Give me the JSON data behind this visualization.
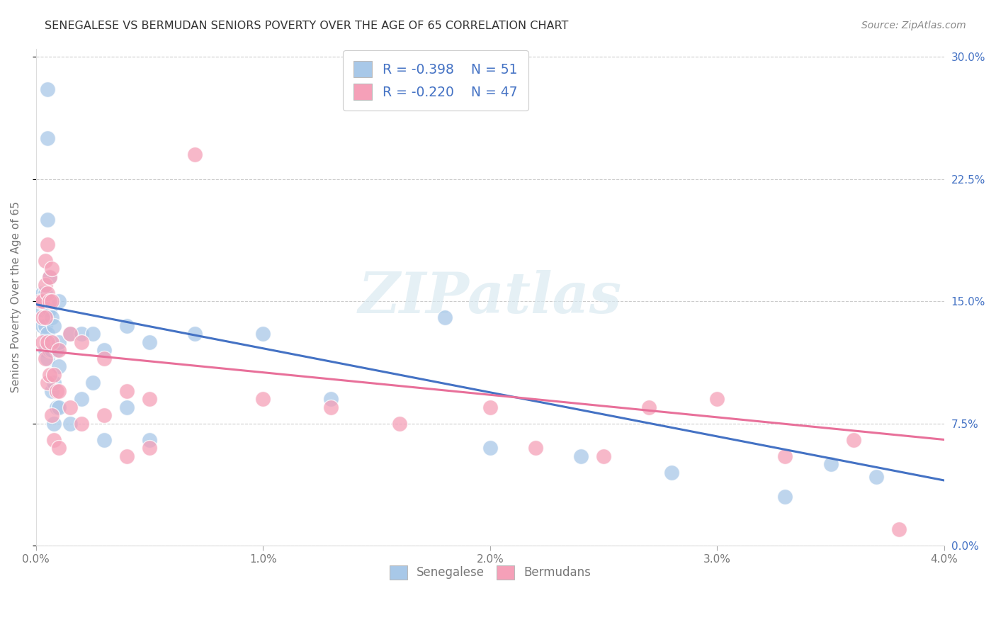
{
  "title": "SENEGALESE VS BERMUDAN SENIORS POVERTY OVER THE AGE OF 65 CORRELATION CHART",
  "source": "Source: ZipAtlas.com",
  "ylabel": "Seniors Poverty Over the Age of 65",
  "xlim": [
    0.0,
    0.04
  ],
  "ylim": [
    0.0,
    0.305
  ],
  "xticks": [
    0.0,
    0.01,
    0.02,
    0.03,
    0.04
  ],
  "xtick_labels": [
    "0.0%",
    "1.0%",
    "2.0%",
    "3.0%",
    "4.0%"
  ],
  "yticks": [
    0.0,
    0.075,
    0.15,
    0.225,
    0.3
  ],
  "ytick_labels_right": [
    "0.0%",
    "7.5%",
    "15.0%",
    "22.5%",
    "30.0%"
  ],
  "watermark": "ZIPatlas",
  "legend_r1": "-0.398",
  "legend_n1": "51",
  "legend_r2": "-0.220",
  "legend_n2": "47",
  "senegalese_label": "Senegalese",
  "bermudans_label": "Bermudans",
  "blue_color": "#a8c8e8",
  "pink_color": "#f5a0b8",
  "blue_line_color": "#4472c4",
  "pink_line_color": "#e8709a",
  "grid_color": "#cccccc",
  "title_color": "#333333",
  "axis_tick_color": "#777777",
  "right_tick_color": "#4472c4",
  "legend_num_color": "#4472c4",
  "blue_scatter_x": [
    0.0002,
    0.0003,
    0.0003,
    0.0003,
    0.0004,
    0.0004,
    0.0004,
    0.0005,
    0.0005,
    0.0005,
    0.0005,
    0.0005,
    0.0005,
    0.0005,
    0.0006,
    0.0006,
    0.0006,
    0.0007,
    0.0007,
    0.0007,
    0.0008,
    0.0008,
    0.0008,
    0.0009,
    0.0009,
    0.001,
    0.001,
    0.001,
    0.001,
    0.0015,
    0.0015,
    0.002,
    0.002,
    0.0025,
    0.0025,
    0.003,
    0.003,
    0.004,
    0.004,
    0.005,
    0.005,
    0.007,
    0.01,
    0.013,
    0.018,
    0.02,
    0.024,
    0.028,
    0.033,
    0.035,
    0.037
  ],
  "blue_scatter_y": [
    0.15,
    0.155,
    0.145,
    0.135,
    0.155,
    0.135,
    0.12,
    0.28,
    0.25,
    0.2,
    0.15,
    0.145,
    0.13,
    0.115,
    0.165,
    0.145,
    0.12,
    0.14,
    0.12,
    0.095,
    0.135,
    0.1,
    0.075,
    0.12,
    0.085,
    0.15,
    0.125,
    0.11,
    0.085,
    0.13,
    0.075,
    0.13,
    0.09,
    0.13,
    0.1,
    0.12,
    0.065,
    0.135,
    0.085,
    0.125,
    0.065,
    0.13,
    0.13,
    0.09,
    0.14,
    0.06,
    0.055,
    0.045,
    0.03,
    0.05,
    0.042
  ],
  "pink_scatter_x": [
    0.0002,
    0.0003,
    0.0003,
    0.0003,
    0.0004,
    0.0004,
    0.0004,
    0.0004,
    0.0005,
    0.0005,
    0.0005,
    0.0005,
    0.0006,
    0.0006,
    0.0006,
    0.0007,
    0.0007,
    0.0007,
    0.0007,
    0.0008,
    0.0008,
    0.0009,
    0.001,
    0.001,
    0.001,
    0.0015,
    0.0015,
    0.002,
    0.002,
    0.003,
    0.003,
    0.004,
    0.004,
    0.005,
    0.005,
    0.007,
    0.01,
    0.013,
    0.016,
    0.02,
    0.022,
    0.025,
    0.027,
    0.03,
    0.033,
    0.036,
    0.038
  ],
  "pink_scatter_y": [
    0.15,
    0.15,
    0.14,
    0.125,
    0.175,
    0.16,
    0.14,
    0.115,
    0.185,
    0.155,
    0.125,
    0.1,
    0.165,
    0.15,
    0.105,
    0.17,
    0.15,
    0.125,
    0.08,
    0.105,
    0.065,
    0.095,
    0.12,
    0.095,
    0.06,
    0.13,
    0.085,
    0.125,
    0.075,
    0.115,
    0.08,
    0.095,
    0.055,
    0.09,
    0.06,
    0.24,
    0.09,
    0.085,
    0.075,
    0.085,
    0.06,
    0.055,
    0.085,
    0.09,
    0.055,
    0.065,
    0.01
  ],
  "blue_trend_x": [
    0.0,
    0.04
  ],
  "blue_trend_y": [
    0.148,
    0.04
  ],
  "pink_trend_x": [
    0.0,
    0.04
  ],
  "pink_trend_y": [
    0.12,
    0.065
  ]
}
